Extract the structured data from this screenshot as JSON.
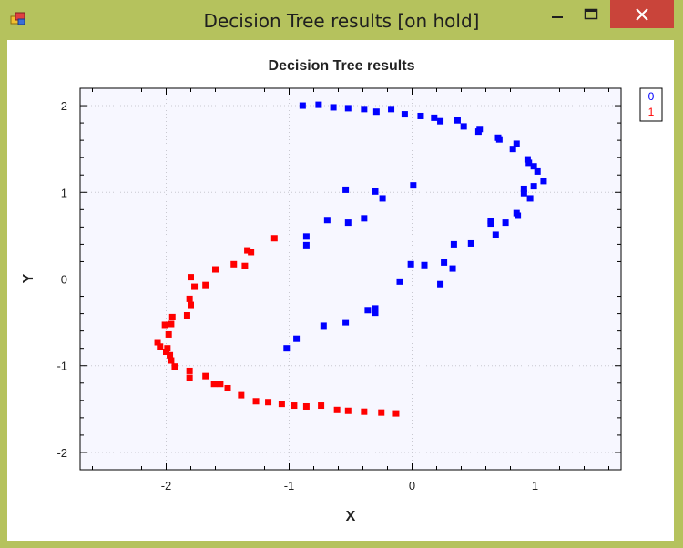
{
  "window": {
    "title": "Decision Tree results [on hold]",
    "icons": {
      "app": "app-icon",
      "minimize": "minimize-icon",
      "maximize": "maximize-icon",
      "close": "close-icon"
    },
    "colors": {
      "frame": "#b5c25d",
      "close": "#c9443a",
      "plot_bg": "#f7f7ff"
    }
  },
  "chart_data": {
    "type": "scatter",
    "title": "Decision Tree results",
    "xlabel": "X",
    "ylabel": "Y",
    "xlim": [
      -2.7,
      1.7
    ],
    "ylim": [
      -2.2,
      2.2
    ],
    "xticks": [
      -2,
      -1,
      0,
      1
    ],
    "yticks": [
      -2,
      -1,
      0,
      1,
      2
    ],
    "grid": true,
    "legend": "right",
    "legend_entries": [
      "0",
      "1"
    ],
    "series": [
      {
        "name": "0",
        "color": "#0000ff",
        "points": [
          [
            -0.89,
            2.0
          ],
          [
            -0.76,
            2.01
          ],
          [
            -0.64,
            1.98
          ],
          [
            -0.52,
            1.97
          ],
          [
            -0.39,
            1.96
          ],
          [
            -0.29,
            1.93
          ],
          [
            -0.17,
            1.96
          ],
          [
            -0.06,
            1.9
          ],
          [
            0.07,
            1.88
          ],
          [
            0.18,
            1.86
          ],
          [
            0.23,
            1.82
          ],
          [
            0.37,
            1.83
          ],
          [
            0.42,
            1.76
          ],
          [
            0.54,
            1.7
          ],
          [
            0.55,
            1.73
          ],
          [
            0.7,
            1.63
          ],
          [
            0.71,
            1.61
          ],
          [
            0.82,
            1.5
          ],
          [
            0.85,
            1.56
          ],
          [
            0.94,
            1.38
          ],
          [
            0.95,
            1.34
          ],
          [
            0.99,
            1.3
          ],
          [
            1.02,
            1.24
          ],
          [
            1.07,
            1.13
          ],
          [
            0.99,
            1.07
          ],
          [
            0.91,
            1.04
          ],
          [
            0.91,
            0.99
          ],
          [
            0.96,
            0.93
          ],
          [
            0.85,
            0.76
          ],
          [
            0.86,
            0.73
          ],
          [
            0.76,
            0.65
          ],
          [
            0.64,
            0.67
          ],
          [
            0.64,
            0.64
          ],
          [
            0.68,
            0.51
          ],
          [
            0.48,
            0.41
          ],
          [
            0.34,
            0.4
          ],
          [
            0.26,
            0.19
          ],
          [
            0.33,
            0.12
          ],
          [
            0.1,
            0.16
          ],
          [
            -0.01,
            0.17
          ],
          [
            0.23,
            -0.06
          ],
          [
            -0.1,
            -0.03
          ],
          [
            -0.3,
            -0.34
          ],
          [
            -0.3,
            -0.39
          ],
          [
            -0.36,
            -0.36
          ],
          [
            -0.54,
            -0.5
          ],
          [
            -0.72,
            -0.54
          ],
          [
            -0.94,
            -0.69
          ],
          [
            -1.02,
            -0.8
          ],
          [
            -0.86,
            0.39
          ],
          [
            -0.86,
            0.49
          ],
          [
            -0.69,
            0.68
          ],
          [
            -0.52,
            0.65
          ],
          [
            -0.39,
            0.7
          ],
          [
            -0.54,
            1.03
          ],
          [
            -0.3,
            1.01
          ],
          [
            -0.24,
            0.93
          ],
          [
            0.01,
            1.08
          ]
        ]
      },
      {
        "name": "1",
        "color": "#ff0000",
        "points": [
          [
            -1.12,
            0.47
          ],
          [
            -1.34,
            0.33
          ],
          [
            -1.31,
            0.31
          ],
          [
            -1.45,
            0.17
          ],
          [
            -1.36,
            0.15
          ],
          [
            -1.6,
            0.11
          ],
          [
            -1.8,
            0.02
          ],
          [
            -1.68,
            -0.07
          ],
          [
            -1.77,
            -0.09
          ],
          [
            -1.81,
            -0.23
          ],
          [
            -1.8,
            -0.3
          ],
          [
            -1.83,
            -0.42
          ],
          [
            -1.95,
            -0.44
          ],
          [
            -1.96,
            -0.52
          ],
          [
            -2.01,
            -0.53
          ],
          [
            -1.98,
            -0.64
          ],
          [
            -2.07,
            -0.73
          ],
          [
            -2.05,
            -0.78
          ],
          [
            -1.99,
            -0.8
          ],
          [
            -2.0,
            -0.84
          ],
          [
            -1.97,
            -0.88
          ],
          [
            -1.96,
            -0.94
          ],
          [
            -1.93,
            -1.01
          ],
          [
            -1.81,
            -1.06
          ],
          [
            -1.81,
            -1.14
          ],
          [
            -1.68,
            -1.12
          ],
          [
            -1.61,
            -1.21
          ],
          [
            -1.56,
            -1.21
          ],
          [
            -1.5,
            -1.26
          ],
          [
            -1.39,
            -1.34
          ],
          [
            -1.27,
            -1.41
          ],
          [
            -1.17,
            -1.42
          ],
          [
            -1.06,
            -1.44
          ],
          [
            -0.96,
            -1.46
          ],
          [
            -0.86,
            -1.47
          ],
          [
            -0.74,
            -1.46
          ],
          [
            -0.61,
            -1.51
          ],
          [
            -0.52,
            -1.52
          ],
          [
            -0.39,
            -1.53
          ],
          [
            -0.25,
            -1.54
          ],
          [
            -0.13,
            -1.55
          ]
        ]
      }
    ]
  }
}
